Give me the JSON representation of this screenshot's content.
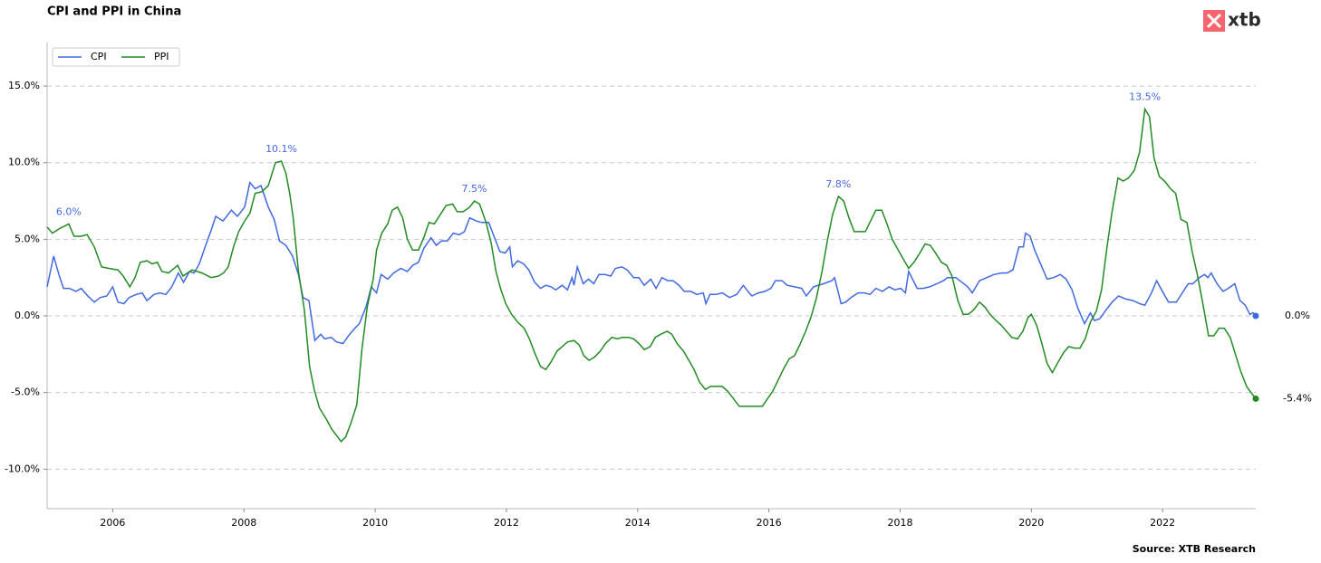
{
  "chart_data": {
    "type": "line",
    "title": "CPI and PPI in China",
    "logo": "xtb",
    "source": "Source: XTB Research",
    "xlim": [
      2005,
      2023.42
    ],
    "xticks": [
      2006,
      2008,
      2010,
      2012,
      2014,
      2016,
      2018,
      2020,
      2022
    ],
    "ylim": [
      -12.58,
      17.84
    ],
    "yticks": [
      {
        "value": -10,
        "label": "-10.0%"
      },
      {
        "value": -5,
        "label": "-5.0%"
      },
      {
        "value": 0,
        "label": "0.0%"
      },
      {
        "value": 5,
        "label": "5.0%"
      },
      {
        "value": 10,
        "label": "10.0%"
      },
      {
        "value": 15,
        "label": "15.0%"
      }
    ],
    "grid": true,
    "legend": "upper left",
    "annotation_color": "#4169e1",
    "annotations": [
      {
        "x": 2005.33,
        "value": 6.0,
        "label": "6.0%"
      },
      {
        "x": 2008.57,
        "value": 10.1,
        "label": "10.1%"
      },
      {
        "x": 2011.51,
        "value": 7.5,
        "label": "7.5%"
      },
      {
        "x": 2017.06,
        "value": 7.8,
        "label": "7.8%"
      },
      {
        "x": 2021.73,
        "value": 13.5,
        "label": "13.5%"
      }
    ],
    "series": [
      {
        "name": "CPI",
        "color": "#4169e1",
        "last_label": "0.0%",
        "x": [
          2005.0,
          2005.1,
          2005.18,
          2005.25,
          2005.34,
          2005.44,
          2005.52,
          2005.62,
          2005.72,
          2005.81,
          2005.91,
          2006.0,
          2006.08,
          2006.17,
          2006.25,
          2006.36,
          2006.45,
          2006.52,
          2006.63,
          2006.72,
          2006.81,
          2006.9,
          2007.0,
          2007.08,
          2007.17,
          2007.24,
          2007.32,
          2007.4,
          2007.5,
          2007.57,
          2007.68,
          2007.81,
          2007.9,
          2008.01,
          2008.09,
          2008.17,
          2008.26,
          2008.37,
          2008.46,
          2008.54,
          2008.64,
          2008.74,
          2008.83,
          2008.9,
          2008.99,
          2009.08,
          2009.17,
          2009.23,
          2009.33,
          2009.41,
          2009.51,
          2009.61,
          2009.69,
          2009.76,
          2009.86,
          2009.94,
          2010.02,
          2010.09,
          2010.19,
          2010.28,
          2010.39,
          2010.49,
          2010.57,
          2010.66,
          2010.74,
          2010.85,
          2010.93,
          2011.01,
          2011.1,
          2011.19,
          2011.28,
          2011.36,
          2011.44,
          2011.54,
          2011.62,
          2011.73,
          2011.81,
          2011.9,
          2011.98,
          2012.05,
          2012.09,
          2012.17,
          2012.26,
          2012.34,
          2012.43,
          2012.52,
          2012.6,
          2012.68,
          2012.75,
          2012.85,
          2012.93,
          2013.0,
          2013.03,
          2013.08,
          2013.17,
          2013.25,
          2013.33,
          2013.41,
          2013.5,
          2013.59,
          2013.66,
          2013.76,
          2013.84,
          2013.94,
          2014.02,
          2014.1,
          2014.2,
          2014.28,
          2014.37,
          2014.46,
          2014.54,
          2014.63,
          2014.71,
          2014.81,
          2014.9,
          2015.0,
          2015.04,
          2015.1,
          2015.19,
          2015.29,
          2015.4,
          2015.51,
          2015.61,
          2015.68,
          2015.74,
          2015.84,
          2015.94,
          2016.03,
          2016.1,
          2016.2,
          2016.28,
          2016.39,
          2016.5,
          2016.57,
          2016.68,
          2016.83,
          2016.96,
          2017.0,
          2017.1,
          2017.17,
          2017.25,
          2017.36,
          2017.46,
          2017.54,
          2017.63,
          2017.73,
          2017.83,
          2017.92,
          2018.01,
          2018.08,
          2018.13,
          2018.26,
          2018.35,
          2018.45,
          2018.56,
          2018.66,
          2018.72,
          2018.85,
          2018.94,
          2019.03,
          2019.1,
          2019.21,
          2019.32,
          2019.43,
          2019.54,
          2019.63,
          2019.72,
          2019.81,
          2019.88,
          2019.91,
          2019.98,
          2020.05,
          2020.15,
          2020.24,
          2020.34,
          2020.44,
          2020.53,
          2020.62,
          2020.71,
          2020.81,
          2020.9,
          2020.96,
          2021.04,
          2021.14,
          2021.23,
          2021.33,
          2021.44,
          2021.55,
          2021.65,
          2021.73,
          2021.83,
          2021.91,
          2022.01,
          2022.09,
          2022.21,
          2022.3,
          2022.39,
          2022.46,
          2022.56,
          2022.64,
          2022.69,
          2022.74,
          2022.83,
          2022.92,
          2023.0,
          2023.1,
          2023.18,
          2023.26,
          2023.33,
          2023.38,
          2023.42
        ],
        "values": [
          1.9,
          3.9,
          2.7,
          1.8,
          1.8,
          1.6,
          1.8,
          1.3,
          0.9,
          1.2,
          1.3,
          1.9,
          0.9,
          0.8,
          1.2,
          1.4,
          1.5,
          1.0,
          1.4,
          1.5,
          1.4,
          1.9,
          2.8,
          2.2,
          2.9,
          2.8,
          3.4,
          4.4,
          5.6,
          6.5,
          6.2,
          6.9,
          6.5,
          7.1,
          8.7,
          8.3,
          8.5,
          7.1,
          6.3,
          4.9,
          4.6,
          3.9,
          2.7,
          1.2,
          1.0,
          -1.6,
          -1.2,
          -1.5,
          -1.4,
          -1.7,
          -1.8,
          -1.2,
          -0.8,
          -0.5,
          0.6,
          1.9,
          1.5,
          2.7,
          2.4,
          2.8,
          3.1,
          2.9,
          3.3,
          3.5,
          4.4,
          5.1,
          4.6,
          4.9,
          4.9,
          5.4,
          5.3,
          5.5,
          6.4,
          6.2,
          6.1,
          6.1,
          5.2,
          4.2,
          4.1,
          4.5,
          3.2,
          3.6,
          3.4,
          3.0,
          2.2,
          1.8,
          2.0,
          1.9,
          1.7,
          2.0,
          1.7,
          2.5,
          2.0,
          3.2,
          2.1,
          2.4,
          2.1,
          2.7,
          2.7,
          2.6,
          3.1,
          3.2,
          3.0,
          2.5,
          2.5,
          2.0,
          2.4,
          1.8,
          2.5,
          2.3,
          2.3,
          2.0,
          1.6,
          1.6,
          1.4,
          1.5,
          0.8,
          1.4,
          1.4,
          1.5,
          1.2,
          1.4,
          2.0,
          1.6,
          1.3,
          1.5,
          1.6,
          1.8,
          2.3,
          2.3,
          2.0,
          1.9,
          1.8,
          1.3,
          1.9,
          2.1,
          2.3,
          2.5,
          0.8,
          0.9,
          1.2,
          1.5,
          1.5,
          1.4,
          1.8,
          1.6,
          1.9,
          1.7,
          1.8,
          1.5,
          2.9,
          1.8,
          1.8,
          1.9,
          2.1,
          2.3,
          2.5,
          2.5,
          2.2,
          1.9,
          1.5,
          2.3,
          2.5,
          2.7,
          2.8,
          2.8,
          3.0,
          4.5,
          4.5,
          5.4,
          5.2,
          4.3,
          3.3,
          2.4,
          2.5,
          2.7,
          2.4,
          1.7,
          0.5,
          -0.5,
          0.2,
          -0.3,
          -0.2,
          0.4,
          0.9,
          1.3,
          1.1,
          1.0,
          0.8,
          0.7,
          1.5,
          2.3,
          1.5,
          0.9,
          0.9,
          1.5,
          2.1,
          2.1,
          2.5,
          2.7,
          2.5,
          2.8,
          2.1,
          1.6,
          1.8,
          2.1,
          1.0,
          0.7,
          0.1,
          0.2,
          0.0
        ]
      },
      {
        "name": "PPI",
        "color": "#228b22",
        "last_label": "-5.4%",
        "x": [
          2005.0,
          2005.08,
          2005.19,
          2005.33,
          2005.41,
          2005.52,
          2005.61,
          2005.72,
          2005.83,
          2005.94,
          2006.08,
          2006.16,
          2006.26,
          2006.34,
          2006.42,
          2006.52,
          2006.6,
          2006.68,
          2006.75,
          2006.85,
          2006.99,
          2007.07,
          2007.21,
          2007.36,
          2007.5,
          2007.61,
          2007.69,
          2007.76,
          2007.84,
          2007.92,
          2008.01,
          2008.09,
          2008.17,
          2008.27,
          2008.37,
          2008.48,
          2008.57,
          2008.64,
          2008.7,
          2008.75,
          2008.83,
          2008.92,
          2009.0,
          2009.07,
          2009.15,
          2009.25,
          2009.34,
          2009.43,
          2009.48,
          2009.55,
          2009.63,
          2009.72,
          2009.8,
          2009.88,
          2009.97,
          2010.02,
          2010.1,
          2010.19,
          2010.26,
          2010.34,
          2010.42,
          2010.49,
          2010.57,
          2010.66,
          2010.74,
          2010.82,
          2010.9,
          2010.99,
          2011.08,
          2011.18,
          2011.25,
          2011.34,
          2011.44,
          2011.51,
          2011.59,
          2011.69,
          2011.77,
          2011.84,
          2011.91,
          2011.99,
          2012.08,
          2012.17,
          2012.27,
          2012.35,
          2012.43,
          2012.52,
          2012.6,
          2012.68,
          2012.77,
          2012.85,
          2012.93,
          2013.03,
          2013.11,
          2013.18,
          2013.26,
          2013.34,
          2013.43,
          2013.51,
          2013.61,
          2013.69,
          2013.77,
          2013.86,
          2013.94,
          2014.02,
          2014.1,
          2014.19,
          2014.27,
          2014.35,
          2014.45,
          2014.52,
          2014.6,
          2014.7,
          2014.78,
          2014.86,
          2014.94,
          2015.03,
          2015.11,
          2015.19,
          2015.29,
          2015.37,
          2015.46,
          2015.55,
          2015.65,
          2015.73,
          2015.81,
          2015.9,
          2015.98,
          2016.06,
          2016.14,
          2016.23,
          2016.31,
          2016.39,
          2016.48,
          2016.56,
          2016.64,
          2016.72,
          2016.81,
          2016.89,
          2016.97,
          2017.06,
          2017.14,
          2017.22,
          2017.3,
          2017.39,
          2017.47,
          2017.55,
          2017.63,
          2017.72,
          2017.8,
          2017.88,
          2017.97,
          2018.05,
          2018.13,
          2018.21,
          2018.3,
          2018.38,
          2018.46,
          2018.54,
          2018.63,
          2018.71,
          2018.79,
          2018.88,
          2018.96,
          2019.04,
          2019.12,
          2019.21,
          2019.29,
          2019.37,
          2019.46,
          2019.54,
          2019.62,
          2019.7,
          2019.79,
          2019.87,
          2019.95,
          2020.0,
          2020.08,
          2020.16,
          2020.24,
          2020.32,
          2020.41,
          2020.49,
          2020.57,
          2020.66,
          2020.74,
          2020.82,
          2020.9,
          2020.99,
          2021.07,
          2021.15,
          2021.23,
          2021.32,
          2021.4,
          2021.48,
          2021.57,
          2021.65,
          2021.73,
          2021.8,
          2021.87,
          2021.95,
          2022.03,
          2022.12,
          2022.2,
          2022.28,
          2022.37,
          2022.45,
          2022.53,
          2022.61,
          2022.7,
          2022.78,
          2022.86,
          2022.94,
          2023.03,
          2023.11,
          2023.19,
          2023.28,
          2023.33,
          2023.42
        ],
        "values": [
          5.8,
          5.4,
          5.7,
          6.0,
          5.2,
          5.2,
          5.3,
          4.5,
          3.2,
          3.1,
          3.0,
          2.6,
          1.9,
          2.5,
          3.5,
          3.6,
          3.4,
          3.5,
          2.9,
          2.8,
          3.3,
          2.6,
          3.0,
          2.8,
          2.5,
          2.6,
          2.8,
          3.2,
          4.5,
          5.5,
          6.2,
          6.7,
          8.0,
          8.1,
          8.5,
          10.0,
          10.1,
          9.3,
          7.9,
          6.4,
          2.9,
          0.4,
          -3.3,
          -4.8,
          -6.0,
          -6.7,
          -7.4,
          -7.9,
          -8.2,
          -7.9,
          -7.0,
          -5.8,
          -2.1,
          0.6,
          2.4,
          4.3,
          5.4,
          6.0,
          6.9,
          7.1,
          6.4,
          5.0,
          4.3,
          4.3,
          5.1,
          6.1,
          6.0,
          6.6,
          7.2,
          7.3,
          6.8,
          6.8,
          7.1,
          7.5,
          7.3,
          6.1,
          4.7,
          2.9,
          1.8,
          0.8,
          0.1,
          -0.4,
          -0.8,
          -1.5,
          -2.4,
          -3.3,
          -3.5,
          -3.0,
          -2.3,
          -2.0,
          -1.7,
          -1.6,
          -1.9,
          -2.6,
          -2.9,
          -2.7,
          -2.3,
          -1.8,
          -1.4,
          -1.5,
          -1.4,
          -1.4,
          -1.5,
          -1.8,
          -2.2,
          -2.0,
          -1.4,
          -1.2,
          -1.0,
          -1.2,
          -1.8,
          -2.3,
          -2.9,
          -3.5,
          -4.3,
          -4.8,
          -4.6,
          -4.6,
          -4.6,
          -4.9,
          -5.4,
          -5.9,
          -5.9,
          -5.9,
          -5.9,
          -5.9,
          -5.4,
          -4.9,
          -4.2,
          -3.4,
          -2.8,
          -2.6,
          -1.8,
          -1.0,
          -0.1,
          1.1,
          2.9,
          4.9,
          6.6,
          7.8,
          7.5,
          6.4,
          5.5,
          5.5,
          5.5,
          6.2,
          6.9,
          6.9,
          6.0,
          5.0,
          4.3,
          3.7,
          3.1,
          3.5,
          4.1,
          4.7,
          4.6,
          4.1,
          3.5,
          3.3,
          2.6,
          1.0,
          0.1,
          0.1,
          0.4,
          0.9,
          0.6,
          0.1,
          -0.3,
          -0.6,
          -1.0,
          -1.4,
          -1.5,
          -1.0,
          -0.1,
          0.1,
          -0.6,
          -1.8,
          -3.1,
          -3.7,
          -3.0,
          -2.4,
          -2.0,
          -2.1,
          -2.1,
          -1.5,
          -0.4,
          0.3,
          1.7,
          4.4,
          6.8,
          9.0,
          8.8,
          9.0,
          9.5,
          10.7,
          13.5,
          13.0,
          10.3,
          9.1,
          8.8,
          8.3,
          8.0,
          6.3,
          6.1,
          4.2,
          2.7,
          0.9,
          -1.3,
          -1.3,
          -0.8,
          -0.8,
          -1.4,
          -2.5,
          -3.6,
          -4.6,
          -4.9,
          -5.4
        ]
      }
    ]
  }
}
